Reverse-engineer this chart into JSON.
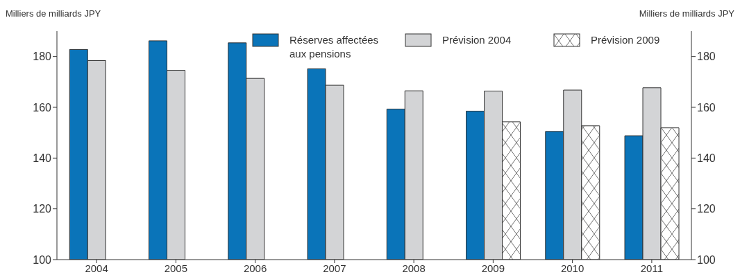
{
  "chart_data": {
    "type": "bar",
    "ylabel": "Milliers de milliards JPY",
    "y2label": "Milliers de milliards JPY",
    "categories": [
      "2004",
      "2005",
      "2006",
      "2007",
      "2008",
      "2009",
      "2010",
      "2011"
    ],
    "series": [
      {
        "name": "Réserves affectées aux pensions",
        "color": "#0a74b9",
        "values": [
          182.8,
          186.2,
          185.4,
          175.2,
          159.3,
          158.5,
          150.5,
          148.8
        ]
      },
      {
        "name": "Prévision 2004",
        "color": "#d3d4d6",
        "values": [
          178.4,
          174.6,
          171.4,
          168.7,
          166.5,
          166.4,
          166.8,
          167.7
        ]
      },
      {
        "name": "Prévision 2009",
        "color": "#333333",
        "values": [
          null,
          null,
          null,
          null,
          null,
          154.3,
          152.7,
          151.9
        ]
      }
    ],
    "ylim": [
      100,
      190
    ],
    "yticks": [
      100,
      120,
      140,
      160,
      180
    ],
    "y2lim": [
      100,
      190
    ],
    "y2ticks": [
      100,
      120,
      140,
      160,
      180
    ],
    "grid": false,
    "legend": "top right"
  }
}
